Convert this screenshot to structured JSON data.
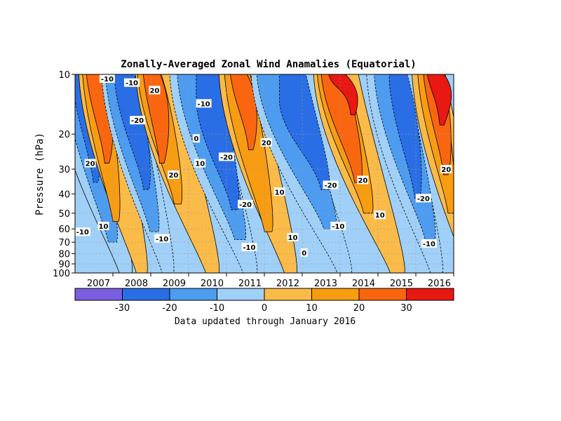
{
  "chart_data": {
    "type": "heatmap",
    "title": "Zonally-Averaged Zonal Wind Anamalies (Equatorial)",
    "ylabel": "Pressure (hPa)",
    "xlabel": "",
    "footer": "Data updated through January 2016",
    "x_axis": {
      "range": [
        2006.0,
        2016.0
      ],
      "tick_values": [
        2007,
        2008,
        2009,
        2010,
        2011,
        2012,
        2013,
        2014,
        2015,
        2016
      ],
      "tick_labels": [
        "2007",
        "2008",
        "2009",
        "2010",
        "2011",
        "2012",
        "2013",
        "2014",
        "2015",
        "2016"
      ]
    },
    "y_axis": {
      "scale": "log",
      "range_hpa": [
        100,
        10
      ],
      "tick_values": [
        10,
        20,
        30,
        40,
        50,
        60,
        70,
        80,
        90,
        100
      ],
      "tick_labels": [
        "10",
        "20",
        "30",
        "40",
        "50",
        "60",
        "70",
        "80",
        "90",
        "100"
      ]
    },
    "grid": true,
    "colorbar": {
      "location": "bottom",
      "levels": [
        -40,
        -30,
        -20,
        -10,
        0,
        10,
        20,
        30,
        40
      ],
      "colors": [
        "#7a5ee0",
        "#2a6ee6",
        "#4d9cf0",
        "#a0d0f8",
        "#fbbb48",
        "#f89c12",
        "#fa6610",
        "#e81812"
      ],
      "tick_values": [
        -30,
        -20,
        -10,
        0,
        10,
        20,
        30
      ],
      "tick_labels": [
        "-30",
        "-20",
        "-10",
        "0",
        "10",
        "20",
        "30"
      ]
    },
    "phase_bands": [
      {
        "t0": 2005.4,
        "p0": 10,
        "t1": 2007.5,
        "p1": 100,
        "level": 0
      },
      {
        "t0": 2005.7,
        "p0": 10,
        "t1": 2007.1,
        "p1": 70,
        "level": -10
      },
      {
        "t0": 2005.9,
        "p0": 10,
        "t1": 2006.6,
        "p1": 35,
        "level": -20
      },
      {
        "t0": 2006.1,
        "p0": 10,
        "t1": 2007.9,
        "p1": 100,
        "level": 1
      },
      {
        "t0": 2006.2,
        "p0": 10,
        "t1": 2007.15,
        "p1": 55,
        "level": 10
      },
      {
        "t0": 2006.3,
        "p0": 10,
        "t1": 2006.9,
        "p1": 28,
        "level": 20
      },
      {
        "t0": 2006.7,
        "p0": 10,
        "t1": 2008.6,
        "p1": 100,
        "level": -1
      },
      {
        "t0": 2006.8,
        "p0": 10,
        "t1": 2008.2,
        "p1": 62,
        "level": -10
      },
      {
        "t0": 2007.05,
        "p0": 11,
        "t1": 2007.95,
        "p1": 38,
        "level": -20
      },
      {
        "t0": 2007.6,
        "p0": 10,
        "t1": 2009.8,
        "p1": 100,
        "level": 1
      },
      {
        "t0": 2007.65,
        "p0": 10,
        "t1": 2008.8,
        "p1": 45,
        "level": 10
      },
      {
        "t0": 2007.8,
        "p0": 10,
        "t1": 2008.35,
        "p1": 28,
        "level": 20
      },
      {
        "t0": 2008.5,
        "p0": 10,
        "t1": 2010.8,
        "p1": 100,
        "level": -1
      },
      {
        "t0": 2008.7,
        "p0": 10,
        "t1": 2010.5,
        "p1": 68,
        "level": -10
      },
      {
        "t0": 2009.2,
        "p0": 14,
        "t1": 2010.3,
        "p1": 48,
        "level": -20
      },
      {
        "t0": 2009.8,
        "p0": 10,
        "t1": 2011.85,
        "p1": 100,
        "level": 1
      },
      {
        "t0": 2009.95,
        "p0": 10,
        "t1": 2011.2,
        "p1": 62,
        "level": 10
      },
      {
        "t0": 2010.1,
        "p0": 10,
        "t1": 2010.7,
        "p1": 24,
        "level": 20
      },
      {
        "t0": 2010.65,
        "p0": 10,
        "t1": 2013.3,
        "p1": 100,
        "level": -1
      },
      {
        "t0": 2010.8,
        "p0": 10,
        "t1": 2012.9,
        "p1": 60,
        "level": -10
      },
      {
        "t0": 2011.4,
        "p0": 14,
        "t1": 2012.7,
        "p1": 38,
        "level": -20
      },
      {
        "t0": 2012.3,
        "p0": 10,
        "t1": 2014.7,
        "p1": 100,
        "level": 1
      },
      {
        "t0": 2012.4,
        "p0": 10,
        "t1": 2013.85,
        "p1": 50,
        "level": 10
      },
      {
        "t0": 2012.5,
        "p0": 10,
        "t1": 2013.55,
        "p1": 35,
        "level": 20
      },
      {
        "t0": 2012.7,
        "p0": 10,
        "t1": 2013.4,
        "p1": 16,
        "level": 30
      },
      {
        "t0": 2013.7,
        "p0": 10,
        "t1": 2015.7,
        "p1": 100,
        "level": -1
      },
      {
        "t0": 2013.9,
        "p0": 10,
        "t1": 2015.5,
        "p1": 68,
        "level": -10
      },
      {
        "t0": 2014.3,
        "p0": 11,
        "t1": 2015.1,
        "p1": 42,
        "level": -20
      },
      {
        "t0": 2014.9,
        "p0": 10,
        "t1": 2016.6,
        "p1": 100,
        "level": 1
      },
      {
        "t0": 2015.05,
        "p0": 10,
        "t1": 2016.0,
        "p1": 50,
        "level": 10
      },
      {
        "t0": 2015.2,
        "p0": 10,
        "t1": 2015.85,
        "p1": 32,
        "level": 20
      },
      {
        "t0": 2015.3,
        "p0": 10,
        "t1": 2015.75,
        "p1": 18,
        "level": 30
      }
    ],
    "contour_labels": [
      {
        "t": 2006.85,
        "p": 10.5,
        "text": "-10"
      },
      {
        "t": 2006.4,
        "p": 28,
        "text": "20"
      },
      {
        "t": 2006.2,
        "p": 62,
        "text": "-10"
      },
      {
        "t": 2006.75,
        "p": 58,
        "text": "10"
      },
      {
        "t": 2007.5,
        "p": 11,
        "text": "-10"
      },
      {
        "t": 2007.65,
        "p": 17,
        "text": "-20"
      },
      {
        "t": 2008.1,
        "p": 12,
        "text": "20"
      },
      {
        "t": 2008.3,
        "p": 67,
        "text": "-10"
      },
      {
        "t": 2008.6,
        "p": 32,
        "text": "20"
      },
      {
        "t": 2009.2,
        "p": 21,
        "text": "0"
      },
      {
        "t": 2009.3,
        "p": 28,
        "text": "10"
      },
      {
        "t": 2009.4,
        "p": 14,
        "text": "-10"
      },
      {
        "t": 2010.0,
        "p": 26,
        "text": "-20"
      },
      {
        "t": 2010.5,
        "p": 45,
        "text": "-20"
      },
      {
        "t": 2010.6,
        "p": 74,
        "text": "-10"
      },
      {
        "t": 2011.05,
        "p": 22,
        "text": "20"
      },
      {
        "t": 2011.4,
        "p": 39,
        "text": "10"
      },
      {
        "t": 2011.75,
        "p": 66,
        "text": "10"
      },
      {
        "t": 2012.05,
        "p": 79,
        "text": "0"
      },
      {
        "t": 2012.75,
        "p": 36,
        "text": "-20"
      },
      {
        "t": 2012.95,
        "p": 58,
        "text": "-10"
      },
      {
        "t": 2013.6,
        "p": 34,
        "text": "20"
      },
      {
        "t": 2014.05,
        "p": 51,
        "text": "10"
      },
      {
        "t": 2015.2,
        "p": 42,
        "text": "-20"
      },
      {
        "t": 2015.35,
        "p": 71,
        "text": "-10"
      },
      {
        "t": 2015.8,
        "p": 30,
        "text": "20"
      }
    ]
  }
}
